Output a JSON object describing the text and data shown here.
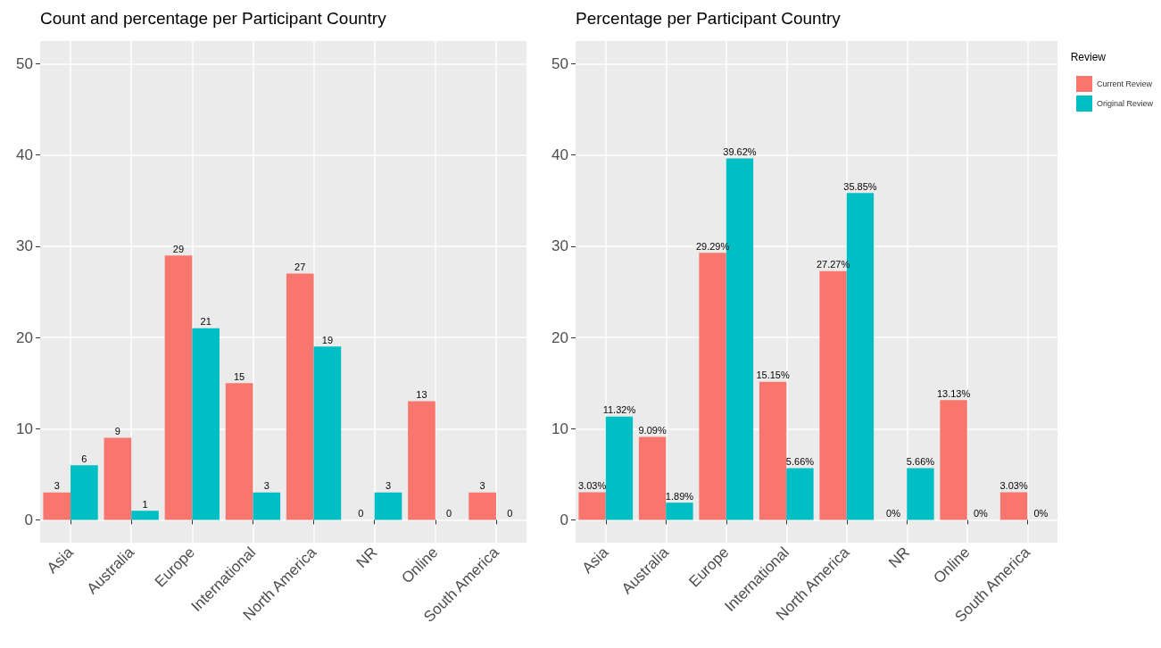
{
  "chart_data": [
    {
      "type": "bar",
      "title": "Count and percentage per Participant Country",
      "categories": [
        "Asia",
        "Australia",
        "Europe",
        "International",
        "North America",
        "NR",
        "Online",
        "South America"
      ],
      "series": [
        {
          "color": "#f8766d",
          "values": [
            3,
            9,
            29,
            15,
            27,
            0,
            13,
            3
          ]
        },
        {
          "color": "#00bfc4",
          "values": [
            6,
            1,
            21,
            3,
            19,
            3,
            0,
            0
          ]
        }
      ],
      "ylim": [
        -2.5,
        52.5
      ],
      "yticks": [
        0,
        10,
        20,
        30,
        40,
        50
      ],
      "grid": true,
      "legend": false,
      "data_labels": true
    },
    {
      "type": "bar",
      "title": "Percentage per Participant Country",
      "legend_title": "Review",
      "categories": [
        "Asia",
        "Australia",
        "Europe",
        "International",
        "North America",
        "NR",
        "Online",
        "South America"
      ],
      "series": [
        {
          "name": "Current Review",
          "color": "#f8766d",
          "values": [
            3.03,
            9.09,
            29.29,
            15.15,
            27.27,
            0,
            13.13,
            3.03
          ],
          "value_labels": [
            "3.03%",
            "9.09%",
            "29.29%",
            "15.15%",
            "27.27%",
            "0%",
            "13.13%",
            "3.03%"
          ]
        },
        {
          "name": "Original Review",
          "color": "#00bfc4",
          "values": [
            11.32,
            1.89,
            39.62,
            5.66,
            35.85,
            5.66,
            0,
            0
          ],
          "value_labels": [
            "11.32%",
            "1.89%",
            "39.62%",
            "5.66%",
            "35.85%",
            "5.66%",
            "0%",
            "0%"
          ]
        }
      ],
      "ylim": [
        -2.5,
        52.5
      ],
      "yticks": [
        0,
        10,
        20,
        30,
        40,
        50
      ],
      "grid": true,
      "legend": "right"
    }
  ]
}
